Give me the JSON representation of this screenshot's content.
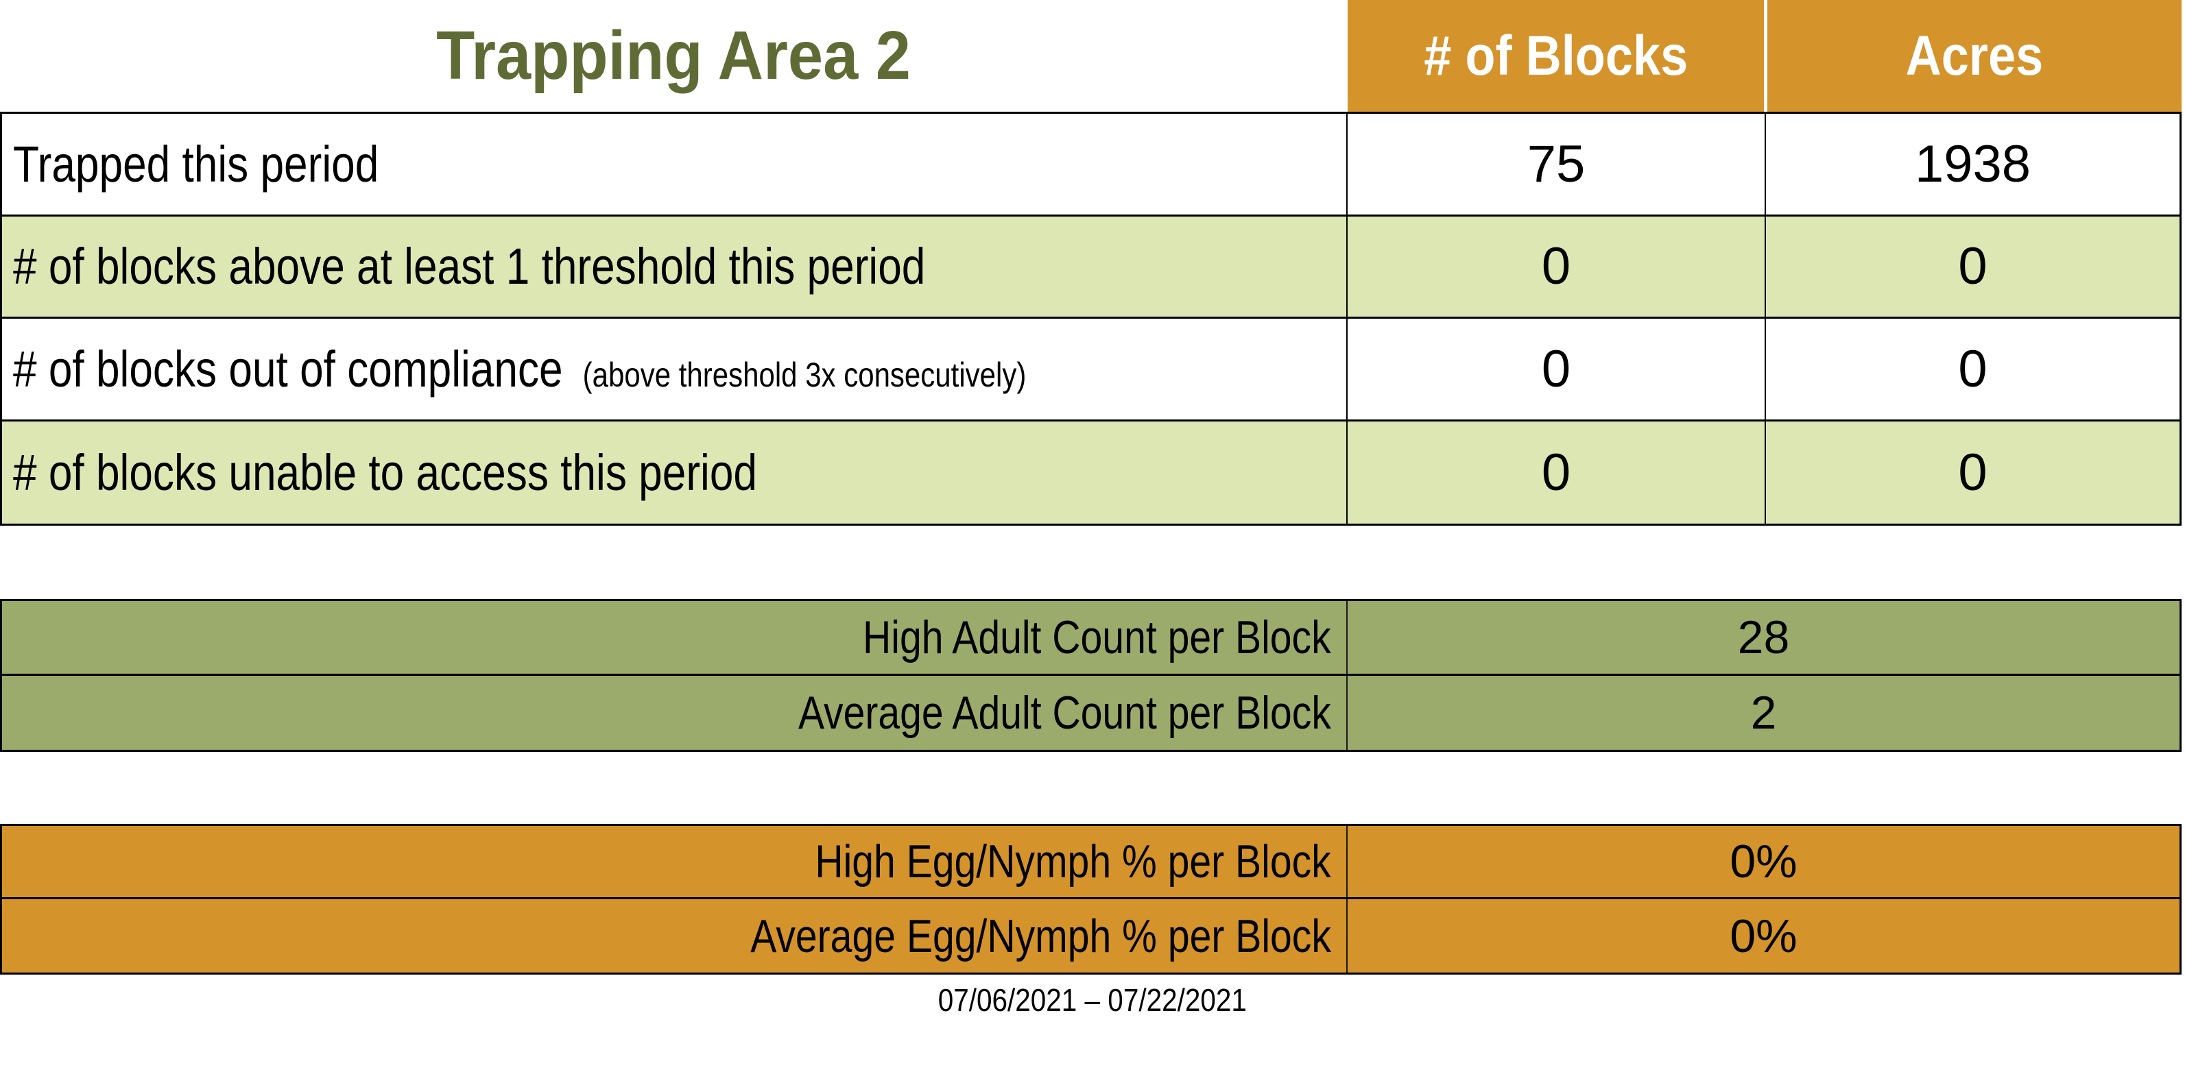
{
  "title": "Trapping Area 2",
  "columns": {
    "blocks": "# of Blocks",
    "acres": "Acres"
  },
  "main_table": {
    "rows": [
      {
        "label": "Trapped this period",
        "note": "",
        "blocks": "75",
        "acres": "1938"
      },
      {
        "label": "# of blocks above at least 1 threshold this period",
        "note": "",
        "blocks": "0",
        "acres": "0"
      },
      {
        "label": "# of blocks out of compliance",
        "note": "(above threshold 3x consecutively)",
        "blocks": "0",
        "acres": "0"
      },
      {
        "label": "# of blocks unable to access this period",
        "note": "",
        "blocks": "0",
        "acres": "0"
      }
    ]
  },
  "adult_counts": {
    "rows": [
      {
        "label": "High Adult Count per Block",
        "value": "28"
      },
      {
        "label": "Average Adult Count per Block",
        "value": "2"
      }
    ]
  },
  "egg_nymph": {
    "rows": [
      {
        "label": "High Egg/Nymph % per Block",
        "value": "0%"
      },
      {
        "label": "Average Egg/Nymph % per Block",
        "value": "0%"
      }
    ]
  },
  "footer": {
    "date_range": "07/06/2021 – 07/22/2021"
  },
  "colors": {
    "header_orange": "#D5932C",
    "row_light_green": "#DCE7B3",
    "section_olive": "#9BAB6C",
    "title_green": "#5F6B35",
    "border_black": "#000000"
  }
}
